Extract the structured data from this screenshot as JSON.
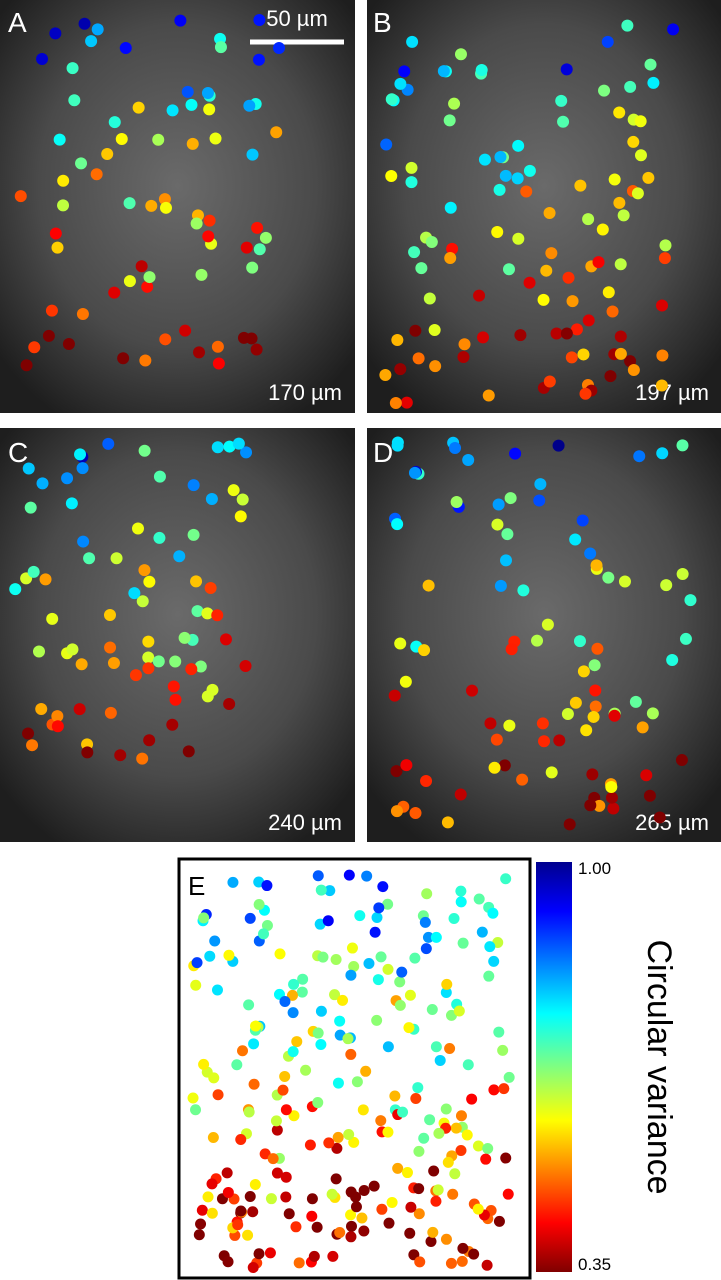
{
  "panels": [
    {
      "letter": "A",
      "depth": "170 µm",
      "scale_bar": "50 µm"
    },
    {
      "letter": "B",
      "depth": "197 µm"
    },
    {
      "letter": "C",
      "depth": "240 µm"
    },
    {
      "letter": "D",
      "depth": "265 µm"
    }
  ],
  "summary": {
    "letter": "E"
  },
  "colorbar": {
    "label": "Circular variance",
    "ticks": [
      {
        "value": 1,
        "label": "1.00"
      },
      0.35
    ]
  }
}
